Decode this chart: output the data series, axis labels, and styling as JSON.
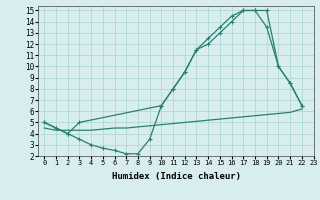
{
  "line1_x": [
    0,
    1,
    2,
    3,
    4,
    5,
    6,
    7,
    8,
    9,
    10,
    11,
    12,
    13,
    14,
    15,
    16,
    17,
    18,
    19,
    20,
    21,
    22
  ],
  "line1_y": [
    5.0,
    4.5,
    4.0,
    3.5,
    3.0,
    2.7,
    2.5,
    2.2,
    2.2,
    3.5,
    6.5,
    8.0,
    9.5,
    11.5,
    12.0,
    13.0,
    14.0,
    15.0,
    15.0,
    15.0,
    10.0,
    8.5,
    6.5
  ],
  "line2_x": [
    0,
    1,
    2,
    3,
    10,
    11,
    12,
    13,
    14,
    15,
    16,
    17,
    18,
    19,
    20,
    21,
    22
  ],
  "line2_y": [
    5.0,
    4.5,
    4.0,
    5.0,
    6.5,
    8.0,
    9.5,
    11.5,
    12.5,
    13.5,
    14.5,
    15.0,
    15.0,
    13.5,
    10.0,
    8.5,
    6.5
  ],
  "line3_x": [
    0,
    1,
    2,
    3,
    4,
    5,
    6,
    7,
    8,
    9,
    10,
    11,
    12,
    13,
    14,
    15,
    16,
    17,
    18,
    19,
    20,
    21,
    22
  ],
  "line3_y": [
    4.5,
    4.3,
    4.3,
    4.3,
    4.3,
    4.4,
    4.5,
    4.5,
    4.6,
    4.7,
    4.8,
    4.9,
    5.0,
    5.1,
    5.2,
    5.3,
    5.4,
    5.5,
    5.6,
    5.7,
    5.8,
    5.9,
    6.2
  ],
  "line_color": "#2a7f72",
  "bg_color": "#d8eeee",
  "grid_color": "#aad4d4",
  "xlabel": "Humidex (Indice chaleur)",
  "xlim": [
    -0.5,
    23
  ],
  "ylim": [
    2,
    15.4
  ],
  "yticks": [
    2,
    3,
    4,
    5,
    6,
    7,
    8,
    9,
    10,
    11,
    12,
    13,
    14,
    15
  ],
  "xticks": [
    0,
    1,
    2,
    3,
    4,
    5,
    6,
    7,
    8,
    9,
    10,
    11,
    12,
    13,
    14,
    15,
    16,
    17,
    18,
    19,
    20,
    21,
    22,
    23
  ],
  "xlabel_fontsize": 6.5,
  "tick_fontsize": 5.0,
  "linewidth": 0.9,
  "markersize": 3.5
}
